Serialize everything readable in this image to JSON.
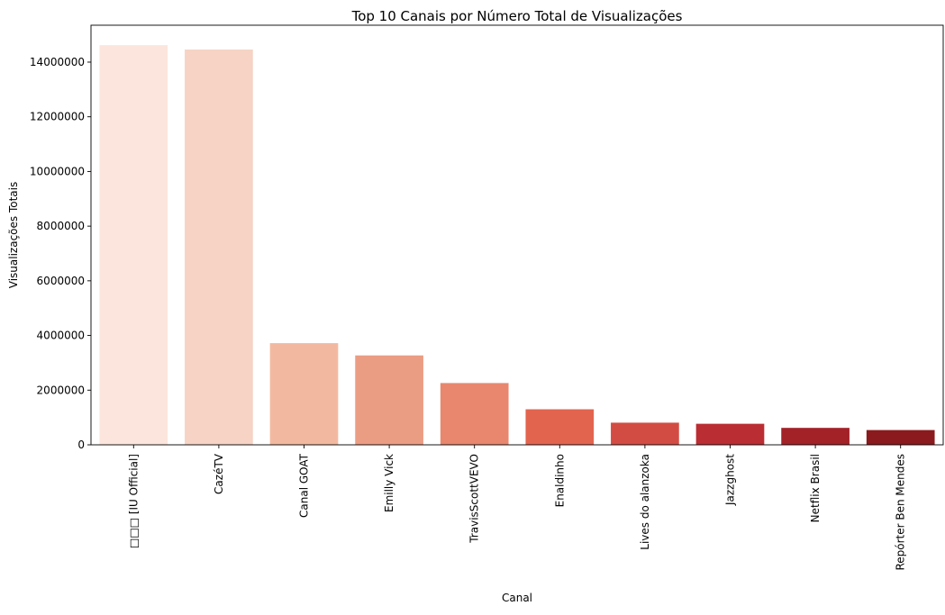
{
  "chart_data": {
    "type": "bar",
    "title": "Top 10 Canais por Número Total de Visualizações",
    "xlabel": "Canal",
    "ylabel": "Visualizações Totais",
    "categories": [
      "□□□ [IU Official]",
      "CazéTV",
      "Canal GOAT",
      "Emilly Vick",
      "TravisScottVEVO",
      "Enaldinho",
      "Lives do alanzoka",
      "Jazzghost",
      "Netflix Brasil",
      "Repórter Ben Mendes"
    ],
    "values": [
      14620000,
      14460000,
      3720000,
      3270000,
      2260000,
      1300000,
      810000,
      770000,
      620000,
      540000
    ],
    "colors": [
      "#fce5dc",
      "#f6d3c4",
      "#f3b9a0",
      "#eb9d83",
      "#e8876e",
      "#e2644f",
      "#d34c43",
      "#ba2d32",
      "#a22228",
      "#8b1a1e"
    ],
    "yticks": [
      0,
      2000000,
      4000000,
      6000000,
      8000000,
      10000000,
      12000000,
      14000000
    ],
    "ytick_labels": [
      "0",
      "2000000",
      "4000000",
      "6000000",
      "8000000",
      "10000000",
      "12000000",
      "14000000"
    ],
    "ylim": [
      0,
      15350000
    ],
    "grid": false,
    "legend": "none"
  }
}
